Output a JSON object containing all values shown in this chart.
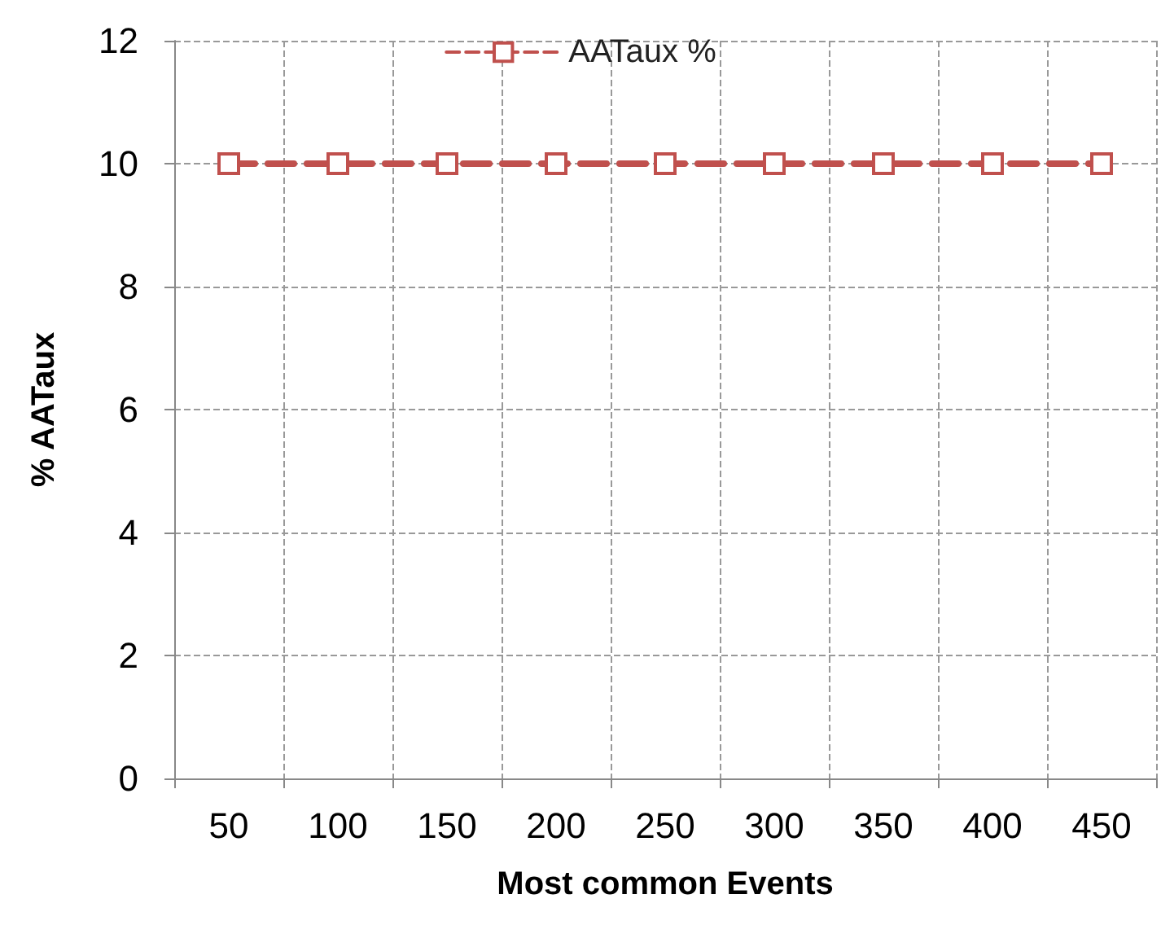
{
  "chart_data": {
    "type": "line",
    "xlabel": "Most common Events",
    "ylabel": "% AATaux",
    "categories": [
      "50",
      "100",
      "150",
      "200",
      "250",
      "300",
      "350",
      "400",
      "450"
    ],
    "series": [
      {
        "name": "AATaux %",
        "color": "#c0504d",
        "values": [
          10,
          10,
          10,
          10,
          10,
          10,
          10,
          10,
          10
        ]
      }
    ],
    "ylim": [
      0,
      12
    ],
    "yticks": [
      0,
      2,
      4,
      6,
      8,
      10,
      12
    ],
    "grid": true,
    "legend": "top",
    "marker": "square",
    "line_style": "dashed"
  }
}
